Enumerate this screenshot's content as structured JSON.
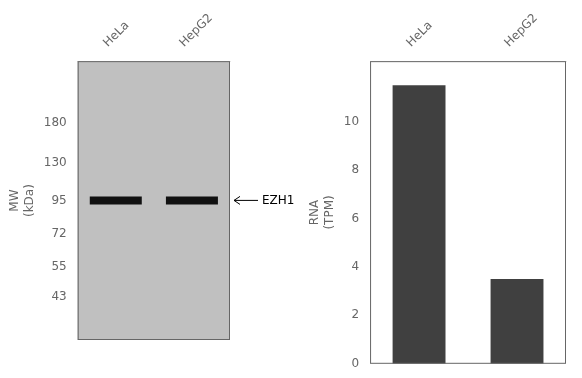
{
  "chart_data": [
    {
      "type": "scatter",
      "categories": [
        "HeLa",
        "HepG2"
      ],
      "values": [
        95,
        95
      ],
      "color": "#111111",
      "marker": "band",
      "ylabel": "MW\n(kDa)",
      "log": "y",
      "ylim": [
        30,
        300
      ],
      "yticks": [
        180,
        130,
        95,
        72,
        55,
        43
      ],
      "annotations": [
        {
          "text": "EZH1",
          "y": 95
        }
      ],
      "grid": false
    },
    {
      "type": "bar",
      "categories": [
        "HeLa",
        "HepG2"
      ],
      "values": [
        11.5,
        3.5
      ],
      "color": "#404040",
      "ylabel": "RNA\n(TPM)",
      "ylim": [
        0,
        12.5
      ],
      "yticks": [
        0,
        2,
        4,
        6,
        8,
        10
      ],
      "grid": false
    }
  ]
}
